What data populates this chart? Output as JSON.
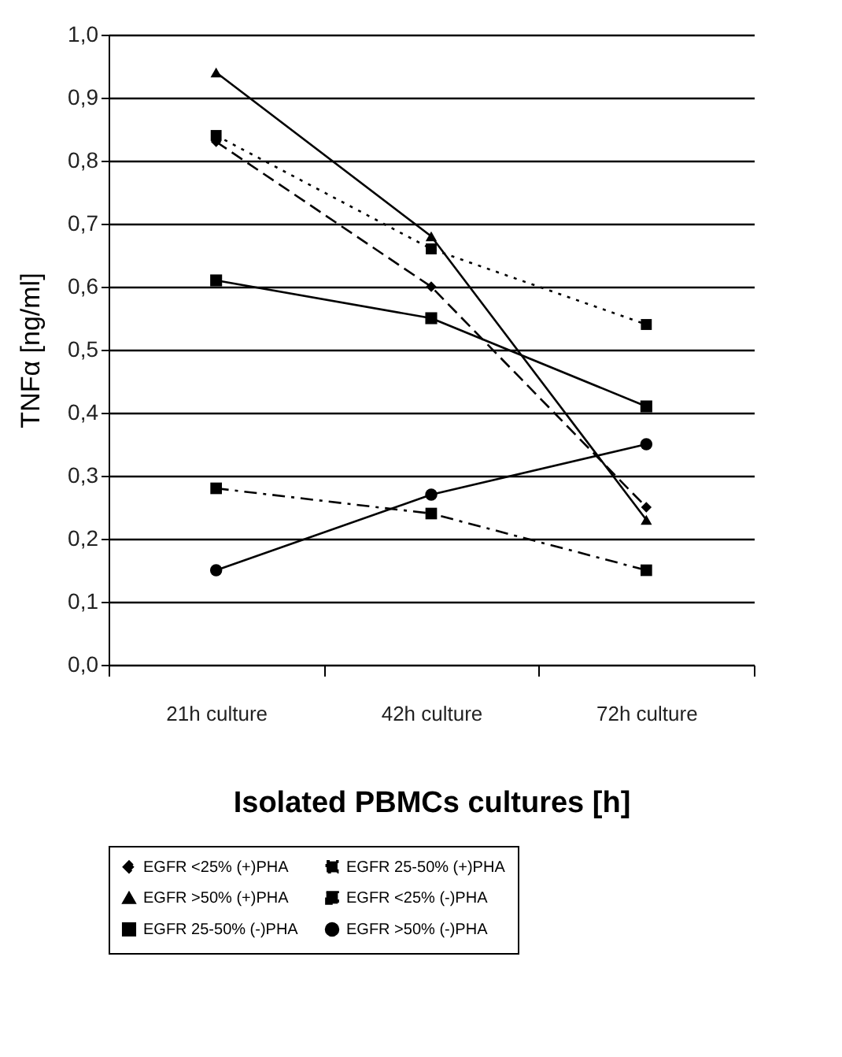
{
  "chart_data": {
    "type": "line",
    "xlabel": "Isolated PBMCs cultures [h]",
    "ylabel": "TNFα [ng/ml]",
    "categories": [
      "21h culture",
      "42h culture",
      "72h culture"
    ],
    "ylim": [
      0,
      1
    ],
    "yticks": [
      {
        "value": 0,
        "label": "0,0"
      },
      {
        "value": 0.1,
        "label": "0,1"
      },
      {
        "value": 0.2,
        "label": "0,2"
      },
      {
        "value": 0.3,
        "label": "0,3"
      },
      {
        "value": 0.4,
        "label": "0,4"
      },
      {
        "value": 0.5,
        "label": "0,5"
      },
      {
        "value": 0.6,
        "label": "0,6"
      },
      {
        "value": 0.7,
        "label": "0,7"
      },
      {
        "value": 0.8,
        "label": "0,8"
      },
      {
        "value": 0.9,
        "label": "0,9"
      },
      {
        "value": 1,
        "label": "1,0"
      }
    ],
    "grid": "y",
    "legend": "bottom",
    "series": [
      {
        "name": "EGFR <25% (+)PHA",
        "color": "#000000",
        "marker": "diamond",
        "line_style": "dashed",
        "values": [
          0.83,
          0.6,
          0.25
        ]
      },
      {
        "name": "EGFR 25-50% (+)PHA",
        "color": "#000000",
        "marker": "square",
        "line_style": "dotted",
        "values": [
          0.84,
          0.66,
          0.54
        ]
      },
      {
        "name": "EGFR >50% (+)PHA",
        "color": "#000000",
        "marker": "triangle",
        "line_style": "solid",
        "values": [
          0.94,
          0.68,
          0.23
        ]
      },
      {
        "name": "EGFR <25% (-)PHA",
        "color": "#000000",
        "marker": "square",
        "line_style": "dashdot",
        "values": [
          0.28,
          0.24,
          0.15
        ]
      },
      {
        "name": "EGFR 25-50% (-)PHA",
        "color": "#000000",
        "marker": "square",
        "line_style": "solid",
        "values": [
          0.61,
          0.55,
          0.41
        ]
      },
      {
        "name": "EGFR >50% (-)PHA",
        "color": "#000000",
        "marker": "circle",
        "line_style": "solid",
        "values": [
          0.15,
          0.27,
          0.35
        ]
      }
    ]
  }
}
